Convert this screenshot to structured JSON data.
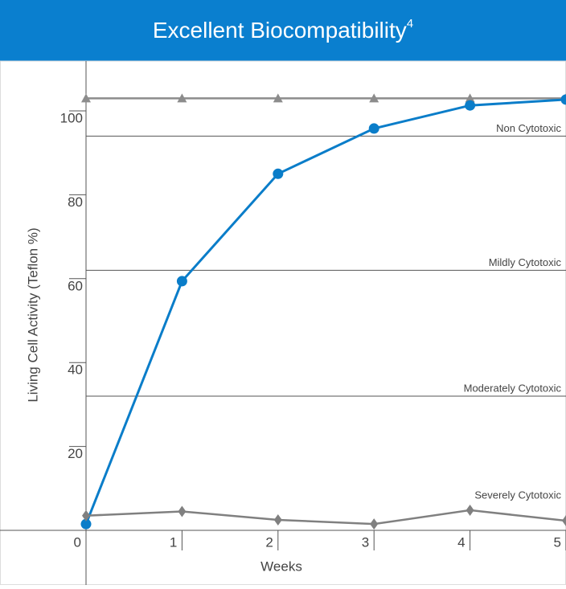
{
  "chart_data": {
    "type": "line",
    "title": "Excellent Biocompatibility",
    "title_superscript": "4",
    "y_label": "Living Cell Activity (Teflon %)",
    "x_label": "Weeks",
    "x": [
      0,
      1,
      2,
      3,
      4,
      5
    ],
    "xlim": [
      0,
      5
    ],
    "xticks": [
      0,
      1,
      2,
      3,
      4,
      5
    ],
    "ylim": [
      0,
      100
    ],
    "yticks": [
      20,
      40,
      60,
      80,
      100
    ],
    "series": [
      {
        "marker": "triangle",
        "color": "#8c8c8c",
        "values": [
          103,
          103,
          103,
          103,
          103,
          103
        ]
      },
      {
        "marker": "circle",
        "color": "#0a7dc9",
        "values": [
          1.5,
          59.4,
          85,
          95.8,
          101.3,
          102.7
        ]
      },
      {
        "marker": "diamond",
        "color": "#808080",
        "values": [
          3.5,
          4.5,
          2.5,
          1.5,
          4.8,
          2.3
        ]
      }
    ],
    "thresholds": [
      {
        "label": "Non Cytotoxic",
        "value": 94
      },
      {
        "label": "Mildly Cytotoxic",
        "value": 62
      },
      {
        "label": "Moderately Cytotoxic",
        "value": 32
      },
      {
        "label": "Severely Cytotoxic",
        "value": null
      }
    ]
  }
}
